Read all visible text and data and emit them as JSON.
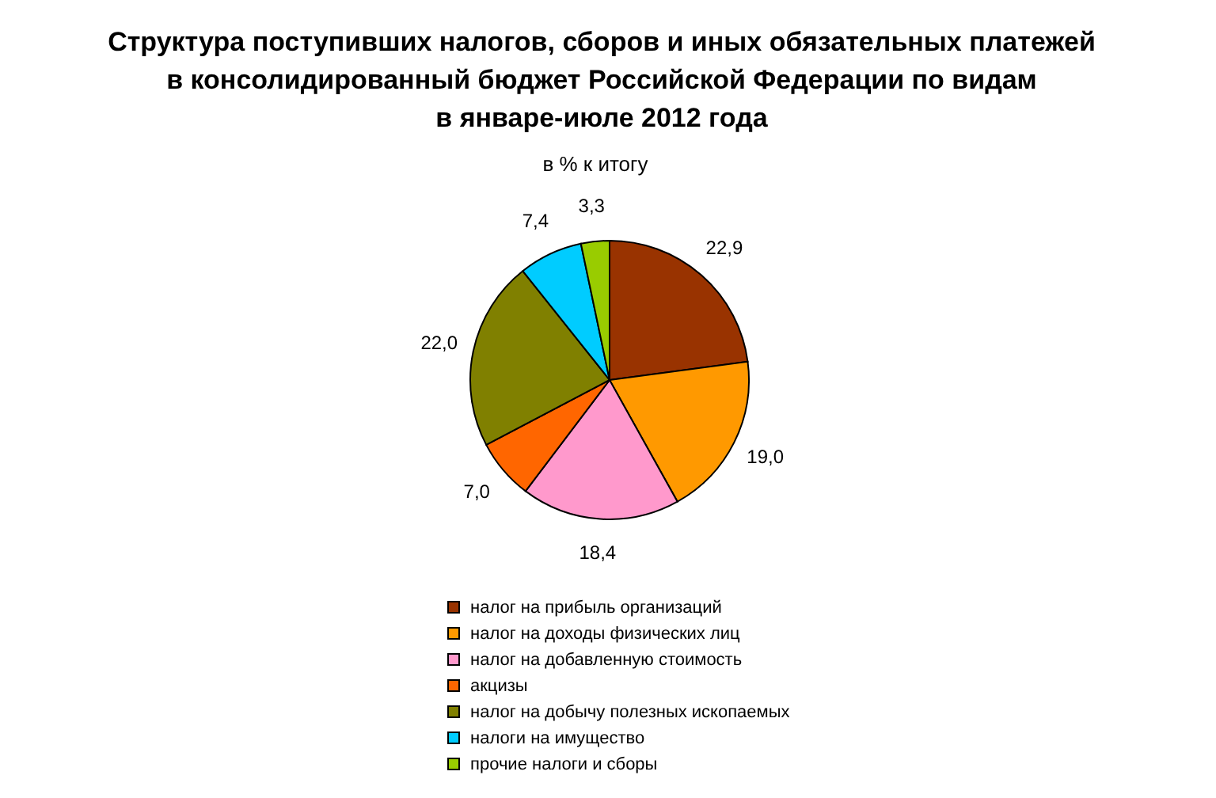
{
  "chart_data": {
    "type": "pie",
    "title": "Структура поступивших налогов, сборов и иных обязательных платежей\nв консолидированный бюджет Российской Федерации по видам\nв январе-июле 2012 года",
    "subtitle": "в % к итогу",
    "categories": [
      "налог на прибыль организаций",
      "налог на доходы физических лиц",
      "налог на добавленную стоимость",
      "акцизы",
      "налог на добычу полезных ископаемых",
      "налоги на имущество",
      "прочие налоги и сборы"
    ],
    "values": [
      22.9,
      19.0,
      18.4,
      7.0,
      22.0,
      7.4,
      3.3
    ],
    "value_labels": [
      "22,9",
      "19,0",
      "18,4",
      "7,0",
      "22,0",
      "7,4",
      "3,3"
    ],
    "colors": [
      "#993300",
      "#ff9900",
      "#ff99cc",
      "#ff6600",
      "#808000",
      "#00ccff",
      "#99cc00"
    ],
    "legend": "bottom"
  }
}
